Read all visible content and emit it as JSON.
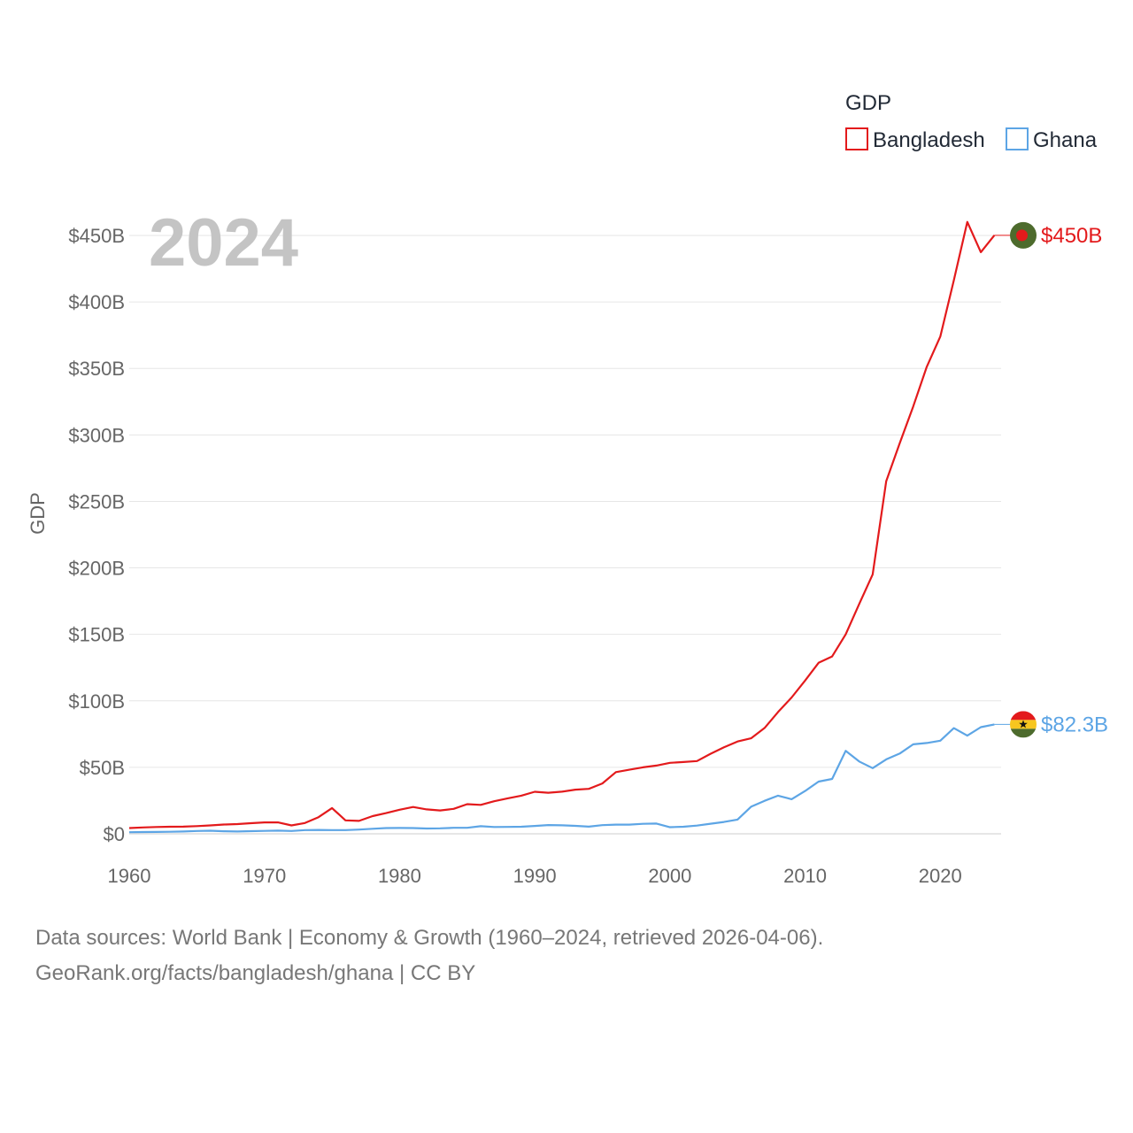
{
  "chart_data": {
    "type": "line",
    "title": "",
    "year_label": "2024",
    "xlabel": "",
    "ylabel": "GDP",
    "xlim": [
      1960,
      2024.5
    ],
    "ylim": [
      0,
      450
    ],
    "x_ticks": [
      1960,
      1970,
      1980,
      1990,
      2000,
      2010,
      2020
    ],
    "x_tick_labels": [
      "1960",
      "1970",
      "1980",
      "1990",
      "2000",
      "2010",
      "2020"
    ],
    "y_ticks": [
      0,
      50,
      100,
      150,
      200,
      250,
      300,
      350,
      400,
      450
    ],
    "y_tick_labels": [
      "$0",
      "$50B",
      "$100B",
      "$150B",
      "$200B",
      "$250B",
      "$300B",
      "$350B",
      "$400B",
      "$450B"
    ],
    "legend": {
      "title": "GDP",
      "position": "top-right"
    },
    "x": [
      1960,
      1961,
      1962,
      1963,
      1964,
      1965,
      1966,
      1967,
      1968,
      1969,
      1970,
      1971,
      1972,
      1973,
      1974,
      1975,
      1976,
      1977,
      1978,
      1979,
      1980,
      1981,
      1982,
      1983,
      1984,
      1985,
      1986,
      1987,
      1988,
      1989,
      1990,
      1991,
      1992,
      1993,
      1994,
      1995,
      1996,
      1997,
      1998,
      1999,
      2000,
      2001,
      2002,
      2003,
      2004,
      2005,
      2006,
      2007,
      2008,
      2009,
      2010,
      2011,
      2012,
      2013,
      2014,
      2015,
      2016,
      2017,
      2018,
      2019,
      2020,
      2021,
      2022,
      2023,
      2024
    ],
    "series": [
      {
        "name": "Bangladesh",
        "color": "#e31a1c",
        "end_label": "$450B",
        "values": [
          4.3,
          4.8,
          5.1,
          5.3,
          5.4,
          5.8,
          6.3,
          7.0,
          7.3,
          8.0,
          8.6,
          8.6,
          6.3,
          8.1,
          12.5,
          19.4,
          10.1,
          9.7,
          13.3,
          15.6,
          18.1,
          20.2,
          18.4,
          17.6,
          18.8,
          22.3,
          21.8,
          24.5,
          26.7,
          28.7,
          31.6,
          30.9,
          31.7,
          33.2,
          33.8,
          37.9,
          46.4,
          48.2,
          50.0,
          51.3,
          53.4,
          54.0,
          54.7,
          60.2,
          65.1,
          69.4,
          71.8,
          79.6,
          91.6,
          102.5,
          115.3,
          128.6,
          133.4,
          149.99,
          172.9,
          195.1,
          265.2,
          293.8,
          321.4,
          351.2,
          374.0,
          416.3,
          460.2,
          437.4,
          450.1
        ]
      },
      {
        "name": "Ghana",
        "color": "#5da5e5",
        "end_label": "$82.3B",
        "values": [
          1.2,
          1.3,
          1.4,
          1.5,
          1.7,
          2.1,
          2.3,
          1.9,
          1.7,
          2.0,
          2.2,
          2.4,
          2.1,
          2.8,
          2.9,
          2.8,
          2.8,
          3.2,
          3.8,
          4.3,
          4.4,
          4.3,
          4.0,
          4.1,
          4.5,
          4.5,
          5.7,
          5.1,
          5.2,
          5.3,
          5.9,
          6.6,
          6.4,
          6.0,
          5.4,
          6.5,
          6.9,
          6.9,
          7.5,
          7.7,
          5.0,
          5.3,
          6.2,
          7.6,
          8.9,
          10.7,
          20.4,
          24.8,
          28.7,
          26.0,
          32.2,
          39.3,
          41.3,
          62.4,
          54.4,
          49.4,
          56.0,
          60.4,
          67.3,
          68.3,
          70.0,
          79.5,
          73.8,
          80.2,
          82.3
        ]
      }
    ]
  },
  "footer": {
    "source_line": "Data sources: World Bank | Economy & Growth (1960–2024, retrieved 2026-04-06).",
    "url_line": "GeoRank.org/facts/bangladesh/ghana | CC BY"
  }
}
